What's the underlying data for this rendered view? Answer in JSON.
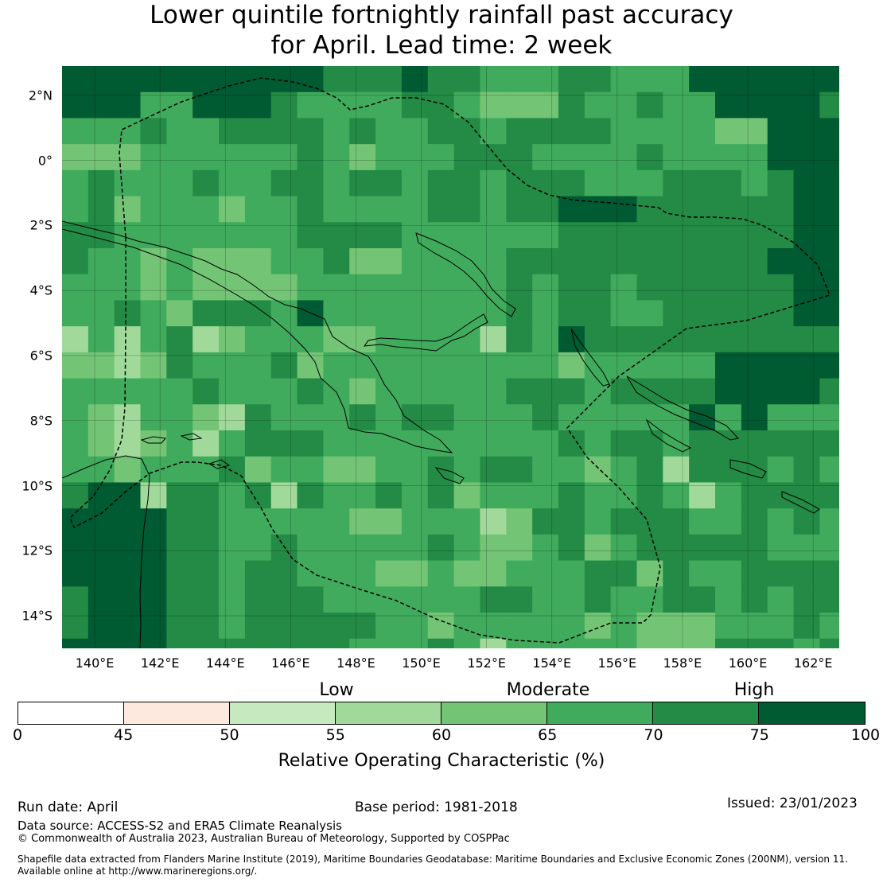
{
  "title": {
    "line1": "Lower quintile fortnightly rainfall past accuracy",
    "line2": "for April. Lead time: 2 week"
  },
  "map": {
    "lat_labels": [
      "2°N",
      "0°",
      "2°S",
      "4°S",
      "6°S",
      "8°S",
      "10°S",
      "12°S",
      "14°S"
    ],
    "lon_labels": [
      "140°E",
      "142°E",
      "144°E",
      "146°E",
      "148°E",
      "150°E",
      "152°E",
      "154°E",
      "156°E",
      "158°E",
      "160°E",
      "162°E"
    ],
    "lat_values": [
      2,
      0,
      -2,
      -4,
      -6,
      -8,
      -10,
      -12,
      -14
    ],
    "lon_values": [
      140,
      142,
      144,
      146,
      148,
      150,
      152,
      154,
      156,
      158,
      160,
      162
    ],
    "extent": {
      "lon_min": 139.0,
      "lon_max": 162.8,
      "lat_min": -15.0,
      "lat_max": 2.9
    },
    "grid_step_deg": 0.8,
    "land_color": "#000000",
    "boundary_style": "dashed"
  },
  "colorbar": {
    "categories": [
      "Low",
      "Moderate",
      "High"
    ],
    "ticks": [
      "0",
      "45",
      "50",
      "55",
      "60",
      "65",
      "70",
      "75",
      "100"
    ],
    "bins": [
      {
        "from": 0,
        "to": 45,
        "color": "#ffffff"
      },
      {
        "from": 45,
        "to": 50,
        "color": "#fee9df"
      },
      {
        "from": 50,
        "to": 55,
        "color": "#c7e9c0"
      },
      {
        "from": 55,
        "to": 60,
        "color": "#a1d99b"
      },
      {
        "from": 60,
        "to": 65,
        "color": "#74c476"
      },
      {
        "from": 65,
        "to": 70,
        "color": "#41ab5d"
      },
      {
        "from": 70,
        "to": 75,
        "color": "#238b45"
      },
      {
        "from": 75,
        "to": 100,
        "color": "#005a32"
      }
    ],
    "label": "Relative Operating Characteristic (%)"
  },
  "footer": {
    "run_date": "Run date: April",
    "base_period": "Base period: 1981-2018",
    "issued": "Issued: 23/01/2023",
    "data_source": "Data source: ACCESS-S2 and ERA5 Climate Reanalysis",
    "copyright": "© Commonwealth of Australia 2023, Australian Bureau of Meteorology, Supported by COSPPac",
    "shapefile_line1": "Shapefile data extracted from Flanders Marine Institute (2019), Maritime Boundaries Geodatabase: Maritime Boundaries and Exclusive Economic Zones (200NM), version 11.",
    "shapefile_line2": "Available online at http://www.marineregions.org/."
  },
  "chart_data": {
    "type": "heatmap",
    "title": "Lower quintile fortnightly rainfall past accuracy for April. Lead time: 2 week",
    "value_label": "Relative Operating Characteristic (%)",
    "color_bins": [
      0,
      45,
      50,
      55,
      60,
      65,
      70,
      75,
      100
    ],
    "lon_range": [
      139.0,
      162.8
    ],
    "lat_range": [
      -15.0,
      2.9
    ],
    "rows_north_to_south": [
      "7777777777666766555665557777777777",
      "7775577765555665444655655777767777",
      "5556556666565566566665555447777777",
      "4445555556545556665555655557777777",
      "5655565566566566566655566656777777",
      "5645554556555566566777666666777777",
      "6655555556666555555666666666777777",
      "6554544455644555566666666667777777",
      "5554544445555555565665666666777777",
      "5565466657555555565665566666777777",
      "3535634555445555365766666666667777",
      "4434655564555555555455555777776677",
      "5555565556545555566656666777766666",
      "5435543655565665556555557575555666",
      "5434535666555555555656656666666666",
      "5545556455445565665545636665656665",
      "6773665636556564555655653566666676",
      "7777665555544555346656665565656666",
      "7777665565555565445645666665556666",
      "7777665665554454455566465566665656",
      "6777665666555555665565566565665656",
      "6777665666665545555545444555655667",
      "7777666666655565355555444666565665",
      "7777666566565556545555455545555566",
      "7777667766655556555555334446555556",
      "7777666666555555545556555444655566",
      "7777665666655666555656555555565666",
      "6666655556656555565557555555565675",
      "6677766555556566555655565555666555",
      "6757565755555555555656565555655556",
      "6656566555656565555656665666655566",
      "6666555556665655556666555556577777",
      "6666555557565555556656665555666666",
      "6666665556655555566656665555666666"
    ]
  }
}
